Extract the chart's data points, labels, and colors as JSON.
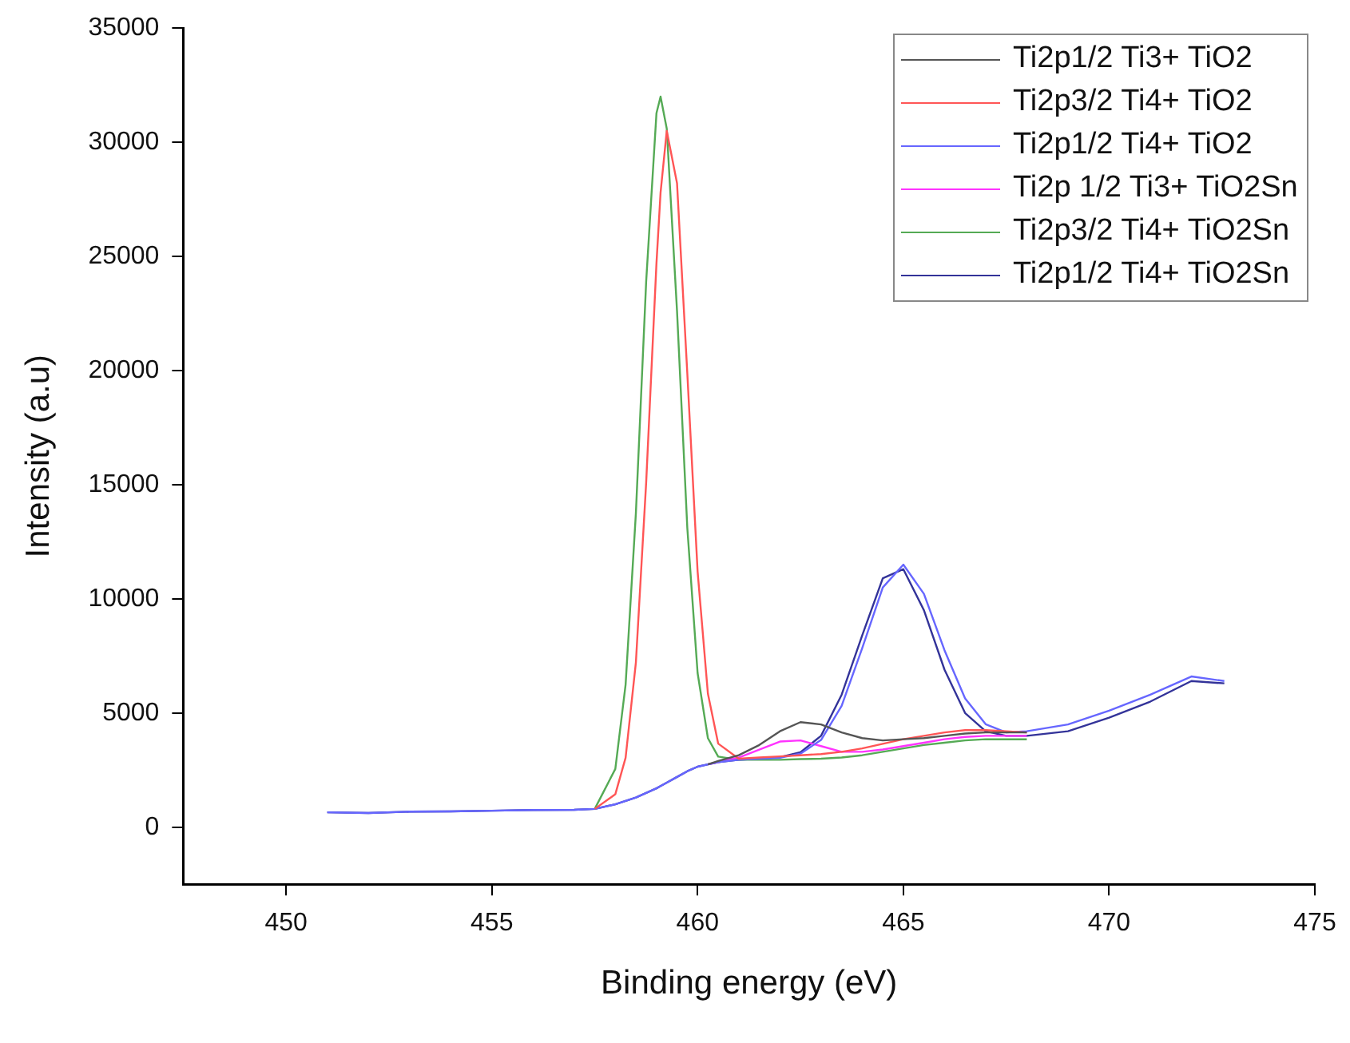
{
  "chart_data": {
    "type": "line",
    "xlabel": "Binding energy (eV)",
    "ylabel": "Intensity (a.u)",
    "x": [
      451,
      452,
      453,
      454,
      455,
      456,
      457,
      457.5,
      458,
      458.25,
      458.5,
      458.75,
      459,
      459.1,
      459.25,
      459.5,
      459.75,
      460,
      460.25,
      460.5,
      461,
      461.5,
      462,
      462.5,
      463,
      463.5,
      464,
      464.5,
      465,
      465.5,
      466,
      466.5,
      467,
      467.5,
      468,
      469,
      470,
      471,
      472,
      472.8
    ],
    "xlim": [
      447.5,
      475
    ],
    "xticks": [
      450,
      455,
      460,
      465,
      470,
      475
    ],
    "ylim": [
      -2500,
      35000
    ],
    "yticks": [
      0,
      5000,
      10000,
      15000,
      20000,
      25000,
      30000,
      35000
    ],
    "grid": false,
    "legend": "top right",
    "marker": "none",
    "line_style": "solid",
    "series": [
      {
        "name": "Ti2p1/2 Ti3+ TiO2",
        "color": "#555555",
        "values": [
          null,
          null,
          null,
          null,
          null,
          null,
          null,
          null,
          null,
          null,
          null,
          null,
          null,
          null,
          null,
          null,
          null,
          null,
          2750,
          2900,
          3150,
          3600,
          4200,
          4600,
          4500,
          4150,
          3900,
          3800,
          3850,
          3900,
          4000,
          4100,
          4150,
          4150,
          4150,
          null,
          null,
          null,
          null,
          null
        ]
      },
      {
        "name": "Ti2p3/2 Ti4+ TiO2",
        "color": "#ff5555",
        "values": [
          null,
          null,
          null,
          null,
          null,
          null,
          null,
          800,
          1440,
          3040,
          7210,
          15100,
          24690,
          27800,
          30500,
          28200,
          19870,
          11200,
          5850,
          3660,
          3000,
          3050,
          3100,
          3150,
          3200,
          3300,
          3450,
          3650,
          3850,
          4000,
          4150,
          4250,
          4250,
          4200,
          4150,
          null,
          null,
          null,
          null,
          null
        ]
      },
      {
        "name": "Ti2p1/2 Ti4+ TiO2",
        "color": "#6666ff",
        "values": [
          650,
          620,
          680,
          690,
          720,
          750,
          760,
          800,
          1000,
          1150,
          1300,
          1500,
          1700,
          1800,
          1950,
          2200,
          2450,
          2650,
          2750,
          2850,
          2950,
          3000,
          3040,
          3220,
          3820,
          5310,
          7840,
          10500,
          11500,
          10220,
          7750,
          5640,
          4510,
          4150,
          4200,
          4500,
          5100,
          5800,
          6600,
          6400
        ]
      },
      {
        "name": "Ti2p 1/2 Ti3+ TiO2Sn",
        "color": "#ff33ff",
        "values": [
          null,
          null,
          null,
          null,
          null,
          null,
          null,
          null,
          null,
          null,
          null,
          null,
          null,
          null,
          null,
          null,
          null,
          null,
          2750,
          2850,
          3050,
          3400,
          3750,
          3800,
          3550,
          3300,
          3300,
          3400,
          3550,
          3700,
          3850,
          3950,
          4000,
          4000,
          4000,
          null,
          null,
          null,
          null,
          null
        ]
      },
      {
        "name": "Ti2p3/2 Ti4+ TiO2Sn",
        "color": "#55aa55",
        "values": [
          null,
          null,
          null,
          null,
          null,
          null,
          null,
          800,
          2550,
          6240,
          13750,
          23900,
          31270,
          32000,
          30600,
          22600,
          13100,
          6750,
          3900,
          3090,
          2950,
          2950,
          2950,
          2980,
          3000,
          3050,
          3150,
          3300,
          3450,
          3600,
          3700,
          3800,
          3850,
          3850,
          3850,
          null,
          null,
          null,
          null,
          null
        ]
      },
      {
        "name": "Ti2p1/2 Ti4+ TiO2Sn",
        "color": "#333399",
        "values": [
          650,
          620,
          680,
          690,
          720,
          750,
          760,
          800,
          1000,
          1150,
          1300,
          1500,
          1700,
          1800,
          1950,
          2200,
          2450,
          2650,
          2750,
          2850,
          2950,
          3000,
          3060,
          3280,
          4000,
          5800,
          8400,
          10900,
          11300,
          9500,
          6900,
          5000,
          4200,
          4000,
          4000,
          4200,
          4800,
          5500,
          6400,
          6300
        ]
      }
    ]
  }
}
